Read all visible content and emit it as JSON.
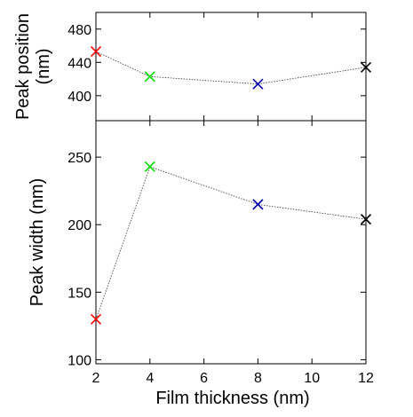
{
  "chart_data": [
    {
      "type": "scatter",
      "title": "",
      "xlabel": "",
      "ylabel": "Peak position\n(nm)",
      "xlim": [
        2,
        12
      ],
      "ylim": [
        370,
        500
      ],
      "xticks": [
        2,
        4,
        6,
        8,
        10,
        12
      ],
      "yticks": [
        400,
        440,
        480
      ],
      "show_xtick_labels": false,
      "grid": false,
      "marker": "x",
      "connected": true,
      "points": [
        {
          "x": 2,
          "y": 453,
          "color": "#ff0000"
        },
        {
          "x": 4,
          "y": 423,
          "color": "#00e000"
        },
        {
          "x": 8,
          "y": 414,
          "color": "#0000b0"
        },
        {
          "x": 12,
          "y": 434,
          "color": "#000000"
        }
      ]
    },
    {
      "type": "scatter",
      "title": "",
      "xlabel": "Film thickness (nm)",
      "ylabel": "Peak width (nm)",
      "xlim": [
        2,
        12
      ],
      "ylim": [
        97,
        277
      ],
      "xticks": [
        2,
        4,
        6,
        8,
        10,
        12
      ],
      "yticks": [
        100,
        150,
        200,
        250
      ],
      "show_xtick_labels": true,
      "grid": false,
      "marker": "x",
      "connected": true,
      "points": [
        {
          "x": 2,
          "y": 130,
          "color": "#ff0000"
        },
        {
          "x": 4,
          "y": 243,
          "color": "#00e000"
        },
        {
          "x": 8,
          "y": 215,
          "color": "#0000b0"
        },
        {
          "x": 12,
          "y": 204,
          "color": "#000000"
        }
      ]
    }
  ]
}
